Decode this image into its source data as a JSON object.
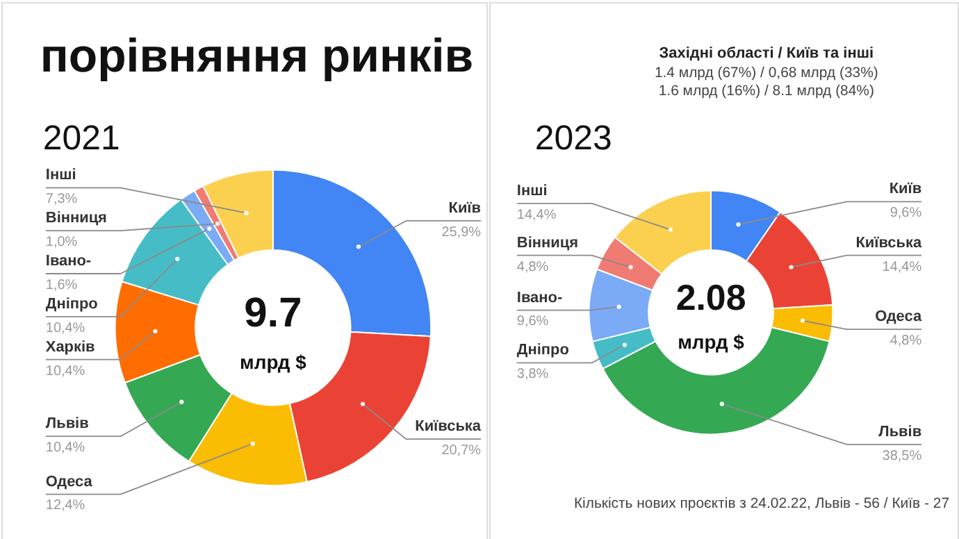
{
  "chart_data": [
    {
      "type": "donut",
      "title": "порівняння ринків",
      "subtitle": "2021",
      "categories": [
        "Київ",
        "Київська",
        "Одеса",
        "Львів",
        "Харків",
        "Дніпро",
        "Івано-",
        "Вінниця",
        "Інші"
      ],
      "values": [
        25.9,
        20.7,
        12.4,
        10.4,
        10.4,
        10.4,
        1.6,
        1.0,
        7.3
      ],
      "value_labels": [
        "25,9%",
        "20,7%",
        "12,4%",
        "10,4%",
        "10,4%",
        "10,4%",
        "1,6%",
        "1,0%",
        "7,3%"
      ],
      "colors": [
        "#4285f4",
        "#ea4335",
        "#fbbc04",
        "#34a853",
        "#ff6d01",
        "#46bdc6",
        "#7baaf7",
        "#f07b72",
        "#fcd04f"
      ],
      "annotations": [
        "9.7",
        "млрд $"
      ]
    },
    {
      "type": "donut",
      "subtitle": "2023",
      "categories": [
        "Київ",
        "Київська",
        "Одеса",
        "Львів",
        "Дніпро",
        "Івано-",
        "Вінниця",
        "Інші"
      ],
      "values": [
        9.6,
        14.4,
        4.8,
        38.5,
        3.8,
        9.6,
        4.8,
        14.4
      ],
      "value_labels": [
        "9,6%",
        "14,4%",
        "4,8%",
        "38,5%",
        "3,8%",
        "9,6%",
        "4,8%",
        "14,4%"
      ],
      "colors": [
        "#4285f4",
        "#ea4335",
        "#fbbc04",
        "#34a853",
        "#46bdc6",
        "#7baaf7",
        "#f07b72",
        "#fcd04f"
      ],
      "annotations": [
        "2.08",
        "млрд $",
        "Західні області / Київ та інші",
        "1.4 млрд (67%) / 0,68 млрд (33%)",
        "1.6 млрд (16%) / 8.1 млрд (84%)",
        "Кількість нових проєктів з 24.02.22, Львів - 56 / Київ - 27"
      ]
    }
  ]
}
